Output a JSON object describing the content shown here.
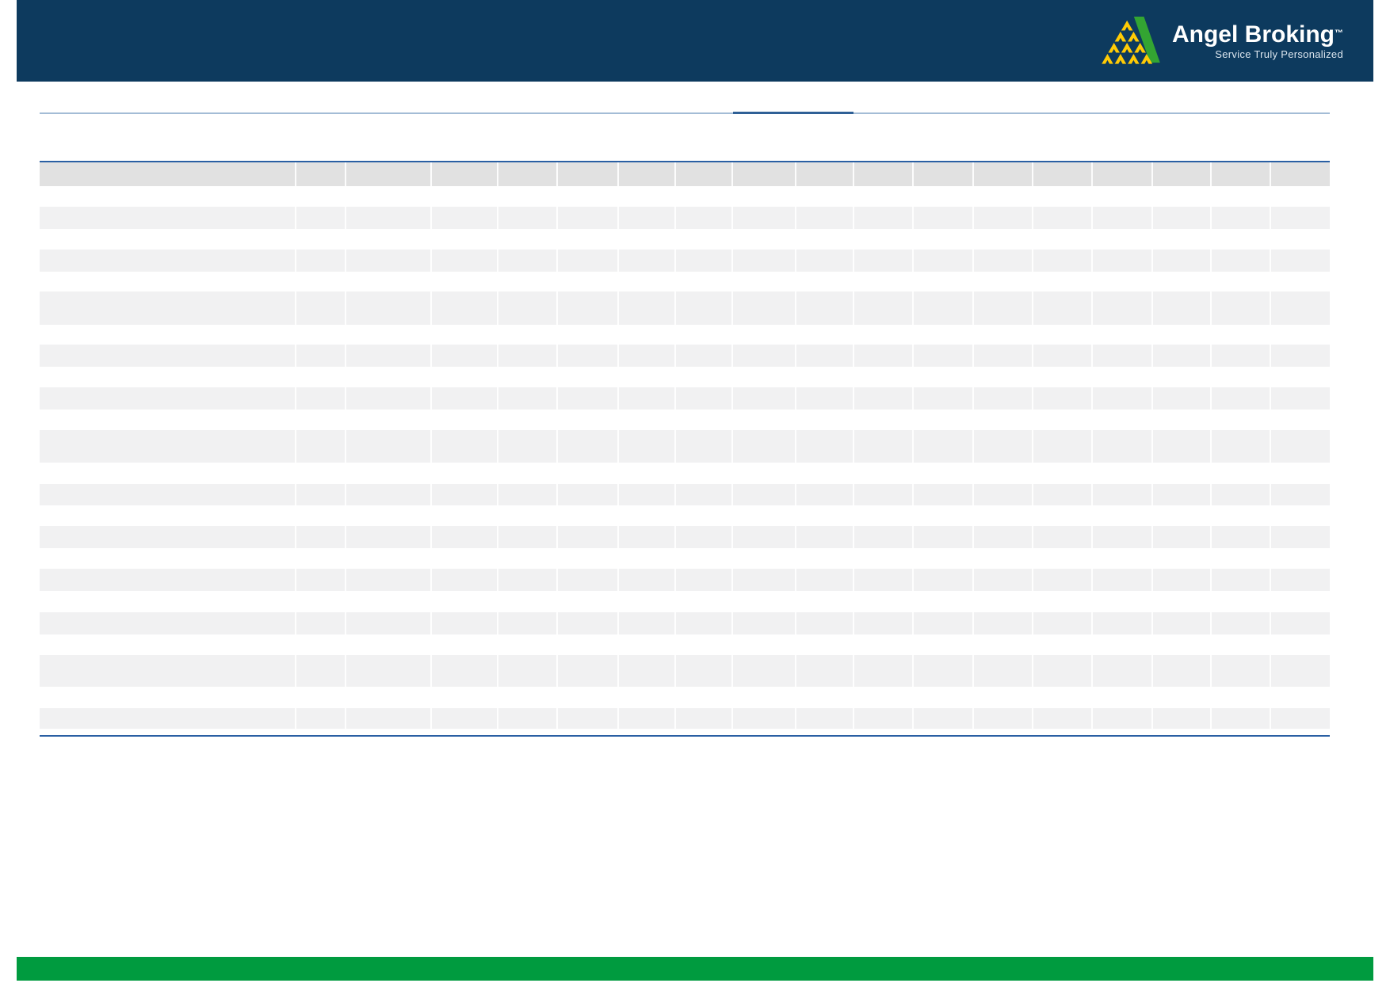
{
  "brand": {
    "name": "Angel Broking",
    "trademark_symbol": "TM",
    "tagline": "Service Truly Personalized"
  },
  "colors": {
    "header_bar_bg": "#0d3a5e",
    "footer_bar_bg": "#009b3f",
    "logo_green": "#33a532",
    "logo_yellow": "#ffcb05",
    "divider_light_blue": "#a3bcd6",
    "divider_accent_blue": "#2f6096",
    "table_border_blue": "#2a5fa3",
    "table_header_bg": "#e1e1e1",
    "table_row_bg": "#f1f1f2",
    "page_bg": "#ffffff"
  },
  "table": {
    "column_count": 18,
    "row_count": 12,
    "header_labels": [
      "",
      "",
      "",
      "",
      "",
      "",
      "",
      "",
      "",
      "",
      "",
      "",
      "",
      "",
      "",
      "",
      "",
      ""
    ]
  }
}
